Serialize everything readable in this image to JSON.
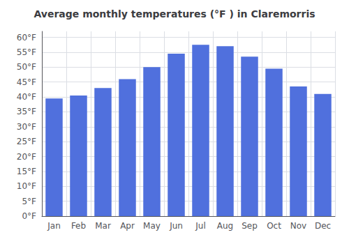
{
  "chart_data": {
    "type": "bar",
    "title": "Average monthly temperatures (°F ) in Claremorris",
    "categories": [
      "Jan",
      "Feb",
      "Mar",
      "Apr",
      "May",
      "Jun",
      "Jul",
      "Aug",
      "Sep",
      "Oct",
      "Nov",
      "Dec"
    ],
    "values": [
      39.5,
      40.5,
      43.0,
      46.0,
      50.0,
      54.5,
      57.5,
      57.0,
      53.5,
      49.5,
      43.5,
      41.0
    ],
    "ylim": [
      0,
      62
    ],
    "yticks": [
      {
        "value": 0,
        "label": "0°F"
      },
      {
        "value": 5,
        "label": "5°F"
      },
      {
        "value": 10,
        "label": "10°F"
      },
      {
        "value": 15,
        "label": "15°F"
      },
      {
        "value": 20,
        "label": "20°F"
      },
      {
        "value": 25,
        "label": "25°F"
      },
      {
        "value": 30,
        "label": "30°F"
      },
      {
        "value": 35,
        "label": "35°F"
      },
      {
        "value": 40,
        "label": "40°F"
      },
      {
        "value": 45,
        "label": "45°F"
      },
      {
        "value": 50,
        "label": "50°F"
      },
      {
        "value": 55,
        "label": "55°F"
      },
      {
        "value": 60,
        "label": "60°F"
      }
    ],
    "grid": true
  }
}
